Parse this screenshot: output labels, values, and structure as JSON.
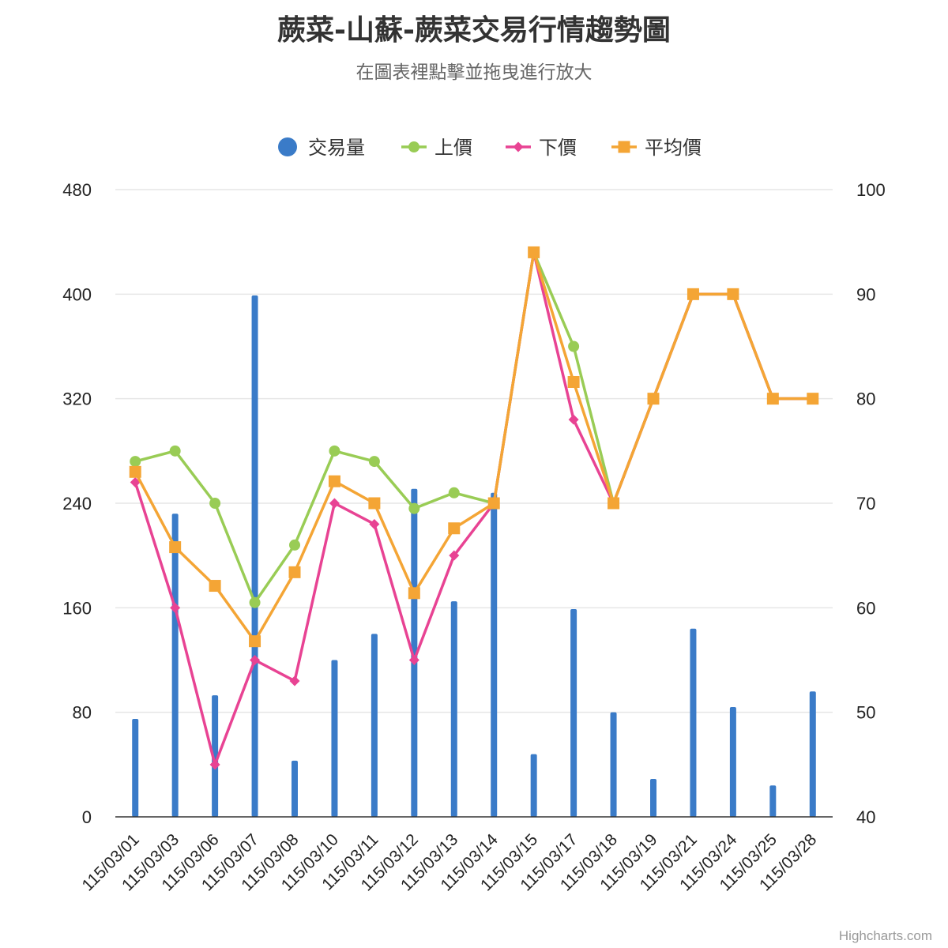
{
  "chart_data": {
    "type": "bar",
    "title": "蕨菜-山蘇-蕨菜交易行情趨勢圖",
    "subtitle": "在圖表裡點擊並拖曳進行放大",
    "categories": [
      "115/03/01",
      "115/03/03",
      "115/03/06",
      "115/03/07",
      "115/03/08",
      "115/03/10",
      "115/03/11",
      "115/03/12",
      "115/03/13",
      "115/03/14",
      "115/03/15",
      "115/03/17",
      "115/03/18",
      "115/03/19",
      "115/03/21",
      "115/03/24",
      "115/03/25",
      "115/03/28"
    ],
    "y_left": {
      "min": 0,
      "max": 480,
      "ticks": [
        0,
        80,
        160,
        240,
        320,
        400,
        480
      ]
    },
    "y_right": {
      "min": 40,
      "max": 100,
      "ticks": [
        40,
        50,
        60,
        70,
        80,
        90,
        100
      ]
    },
    "grid": true,
    "legend_position": "top-center",
    "series": [
      {
        "name": "交易量",
        "type": "column",
        "axis": "left",
        "color": "#3a7bc8",
        "values": [
          75,
          232,
          93,
          399,
          43,
          120,
          140,
          251,
          165,
          248,
          48,
          159,
          80,
          29,
          144,
          84,
          24,
          96
        ]
      },
      {
        "name": "上價",
        "type": "line",
        "axis": "right",
        "color": "#99cc55",
        "marker": "circle",
        "values": [
          74,
          75,
          70,
          60.5,
          66,
          75,
          74,
          69.5,
          71,
          70,
          94,
          85,
          70,
          80,
          90,
          90,
          80,
          80
        ]
      },
      {
        "name": "下價",
        "type": "line",
        "axis": "right",
        "color": "#e84393",
        "marker": "diamond",
        "values": [
          72,
          60,
          45,
          55,
          53,
          70,
          68,
          55,
          65,
          70,
          94,
          78,
          70,
          80,
          90,
          90,
          80,
          80
        ]
      },
      {
        "name": "平均價",
        "type": "line",
        "axis": "right",
        "color": "#f4a535",
        "marker": "square",
        "values": [
          73,
          65.8,
          62.1,
          56.8,
          63.4,
          72.1,
          70,
          61.4,
          67.6,
          70,
          94,
          81.6,
          70,
          80,
          90,
          90,
          80,
          80
        ]
      }
    ],
    "credits": "Highcharts.com"
  }
}
